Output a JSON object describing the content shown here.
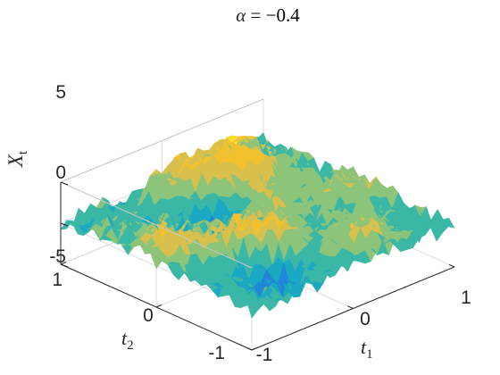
{
  "chart_data": {
    "type": "surface",
    "title_lhs": "α",
    "title_rhs": "= −0.4",
    "alpha": -0.4,
    "zlabel_main": "X",
    "zlabel_sub": "t",
    "xlabel_main": "t",
    "xlabel_sub": "1",
    "ylabel_main": "t",
    "ylabel_sub": "2",
    "xlim": [
      -1,
      1
    ],
    "ylim": [
      -1,
      1
    ],
    "zlim": [
      -5,
      5
    ],
    "x_ticks": [
      "-1",
      "0",
      "1"
    ],
    "y_ticks": [
      "-1",
      "0",
      "1"
    ],
    "z_ticks": [
      "-5",
      "0",
      "5"
    ],
    "grid": true,
    "colormap": [
      "#0b3fc4",
      "#1f86d8",
      "#1aa8c2",
      "#3bb7a6",
      "#8cc47a",
      "#d9c04d",
      "#f2c22e",
      "#f8e032"
    ],
    "surface_extent": {
      "t1_range": [
        -1,
        1
      ],
      "t2_range": [
        -1,
        1
      ],
      "height_range": [
        -3.5,
        4.5
      ]
    }
  }
}
